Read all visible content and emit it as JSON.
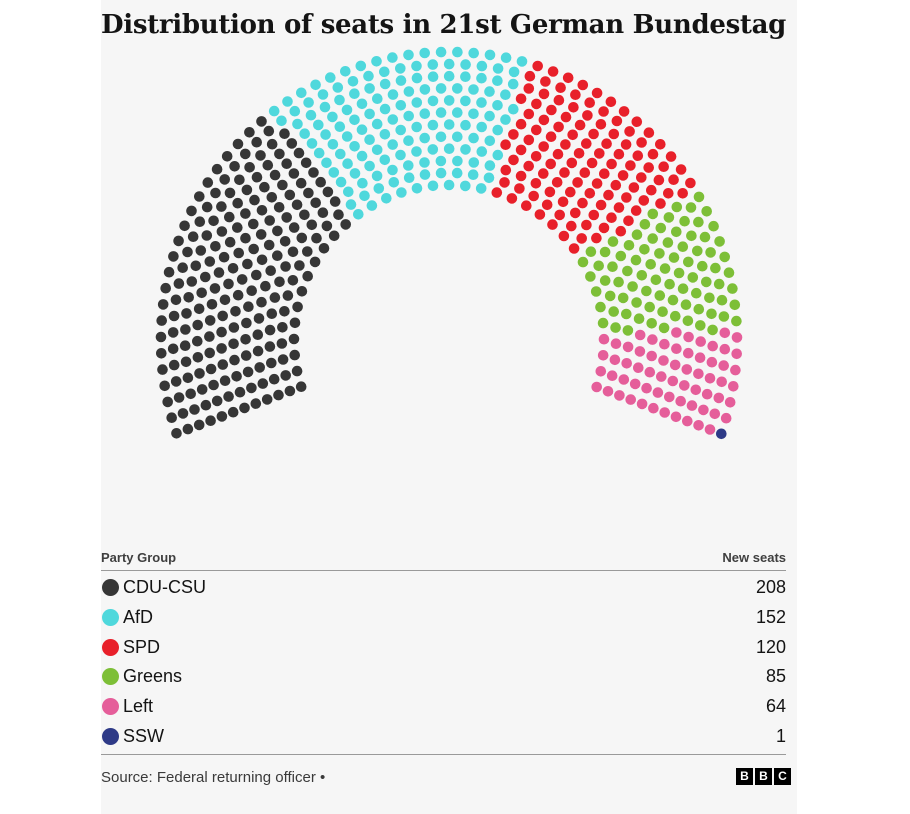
{
  "title": "Distribution of seats in 21st German Bundestag",
  "legend": {
    "party_header": "Party Group",
    "seats_header": "New seats"
  },
  "source": "Source: Federal returning officer",
  "source_separator": "•",
  "logo": {
    "letters": [
      "B",
      "B",
      "C"
    ]
  },
  "chart_data": {
    "type": "parliament",
    "title": "Distribution of seats in 21st German Bundestag",
    "total_seats": 630,
    "series": [
      {
        "name": "CDU-CSU",
        "value": 208,
        "color": "#363636"
      },
      {
        "name": "AfD",
        "value": 152,
        "color": "#4fd8dc"
      },
      {
        "name": "SPD",
        "value": 120,
        "color": "#e8202a"
      },
      {
        "name": "Greens",
        "value": 85,
        "color": "#7dbf37"
      },
      {
        "name": "Left",
        "value": 64,
        "color": "#e55e9a"
      },
      {
        "name": "SSW",
        "value": 1,
        "color": "#2e3a87"
      }
    ]
  }
}
